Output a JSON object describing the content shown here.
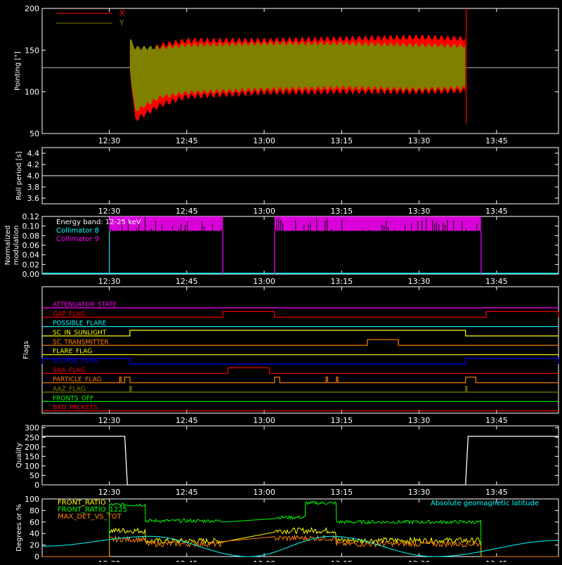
{
  "time_axis": {
    "ticks": [
      "12:30",
      "12:45",
      "13:00",
      "13:15",
      "13:30",
      "13:45"
    ]
  },
  "colors": {
    "X": "#ff0000",
    "Y": "#808000",
    "white": "#ffffff",
    "cyan": "#00ffff",
    "magenta": "#ff00ff",
    "green": "#00ff00",
    "orange": "#ff8000",
    "yellow": "#ffff00",
    "blue": "#0000ff",
    "red": "#ff0000",
    "olive": "#808000"
  },
  "chart_data": [
    {
      "id": "pointing",
      "type": "line",
      "ylabel": "Pointing [\"]",
      "ylim": [
        50,
        200
      ],
      "yticks": [
        "50",
        "100",
        "150",
        "200"
      ],
      "reference_line": 129,
      "series": [
        {
          "name": "X",
          "x": [
            "12:34",
            "12:35",
            "12:40",
            "12:45",
            "13:00",
            "13:15",
            "13:30",
            "13:39"
          ],
          "upper": [
            150,
            140,
            152,
            158,
            158,
            160,
            162,
            160
          ],
          "lower": [
            130,
            70,
            88,
            98,
            103,
            104,
            104,
            105
          ]
        },
        {
          "name": "Y",
          "x": [
            "12:34",
            "12:35",
            "12:40",
            "12:45",
            "13:00",
            "13:15",
            "13:30",
            "13:39"
          ],
          "upper": [
            160,
            150,
            150,
            153,
            155,
            155,
            153,
            152
          ],
          "lower": [
            130,
            80,
            97,
            102,
            106,
            108,
            106,
            108
          ]
        }
      ]
    },
    {
      "id": "roll",
      "type": "line",
      "ylabel": "Roll period [s]",
      "ylim": [
        3.5,
        4.5
      ],
      "yticks": [
        "3.6",
        "3.8",
        "4.0",
        "4.2",
        "4.4"
      ],
      "series": [
        {
          "name": "",
          "x": [
            "12:17",
            "13:57"
          ],
          "y": [
            4.0,
            4.0
          ]
        }
      ]
    },
    {
      "id": "modulation",
      "type": "line",
      "ylabel": "Normalized modulation",
      "ylim": [
        0,
        0.12
      ],
      "yticks": [
        "0.00",
        "0.02",
        "0.04",
        "0.06",
        "0.08",
        "0.10",
        "0.12"
      ],
      "legend": [
        "Energy band:  12-25 keV",
        "Collimator 8",
        "Collimator 9"
      ],
      "series": [
        {
          "name": "Collimator 8",
          "x": [
            "12:17",
            "13:57"
          ],
          "y": [
            0,
            0
          ]
        },
        {
          "name": "Collimator 9",
          "segments": [
            [
              "12:30",
              "12:52",
              0.09,
              0.12
            ],
            [
              "13:02",
              "13:42",
              0.09,
              0.12
            ]
          ]
        }
      ]
    },
    {
      "id": "flags",
      "type": "line",
      "ylabel": "Flags",
      "flags": [
        {
          "name": "ATTENUATOR_STATE",
          "color": "#ff00ff",
          "on": []
        },
        {
          "name": "GAP_FLAG",
          "color": "#ff0000",
          "on": [
            [
              "12:52",
              "13:02"
            ],
            [
              "13:43",
              "13:57"
            ]
          ]
        },
        {
          "name": "POSSIBLE_FLARE",
          "color": "#00ffff",
          "on": []
        },
        {
          "name": "SC_IN_SUNLIGHT",
          "color": "#ffff00",
          "on": [
            [
              "12:34",
              "13:39"
            ]
          ]
        },
        {
          "name": "SC_TRANSMITTER",
          "color": "#ff8000",
          "on": [
            [
              "13:20",
              "13:26"
            ]
          ]
        },
        {
          "name": "FLARE_FLAG",
          "color": "#ffff00",
          "on": []
        },
        {
          "name": "ECLIPSE_FLAG",
          "color": "#0000ff",
          "on": [
            [
              "12:17",
              "12:34"
            ],
            [
              "13:39",
              "13:57"
            ]
          ]
        },
        {
          "name": "SAA_FLAG",
          "color": "#ff0000",
          "on": [
            [
              "12:53",
              "13:01"
            ]
          ]
        },
        {
          "name": "PARTICLE_FLAG",
          "color": "#ff8000",
          "on": [
            [
              "12:32",
              "12:32"
            ],
            [
              "12:33",
              "12:34"
            ],
            [
              "13:02",
              "13:03"
            ],
            [
              "13:12",
              "13:12"
            ],
            [
              "13:14",
              "13:14"
            ],
            [
              "13:39",
              "13:41"
            ]
          ]
        },
        {
          "name": "AAZ_FLAG",
          "color": "#808000",
          "on": [
            [
              "12:34",
              "12:34"
            ],
            [
              "13:39",
              "13:39"
            ]
          ]
        },
        {
          "name": "FRONTS_OFF",
          "color": "#00ff00",
          "on": []
        },
        {
          "name": "BAD_PACKETS",
          "color": "#ff0000",
          "on": []
        }
      ]
    },
    {
      "id": "quality",
      "type": "line",
      "ylabel": "Quality",
      "ylim": [
        0,
        310
      ],
      "yticks": [
        "0",
        "50",
        "100",
        "150",
        "200",
        "250",
        "300"
      ],
      "series": [
        {
          "name": "",
          "x": [
            "12:17",
            "12:33",
            "12:33.5",
            "13:39",
            "13:39.5",
            "13:57"
          ],
          "y": [
            255,
            255,
            0,
            0,
            255,
            255
          ]
        }
      ]
    },
    {
      "id": "ratios",
      "type": "line",
      "ylabel": "Degrees or %",
      "ylim": [
        0,
        100
      ],
      "yticks": [
        "0",
        "20",
        "40",
        "60",
        "80",
        "100"
      ],
      "legend": [
        "FRONT_RATIO",
        "FRONT_RATIO_1225",
        "MAX_DET_VS_TOT"
      ],
      "legend_right": "Absolute geomagnetic latitude",
      "series": [
        {
          "name": "FRONT_RATIO",
          "segments": [
            [
              "12:30",
              "12:37",
              45
            ],
            [
              "12:37",
              "12:52",
              27
            ],
            [
              "13:02",
              "13:14",
              45
            ],
            [
              "13:14",
              "13:42",
              28
            ]
          ]
        },
        {
          "name": "FRONT_RATIO_1225",
          "segments": [
            [
              "12:30",
              "12:37",
              90
            ],
            [
              "12:37",
              "12:52",
              62
            ],
            [
              "13:02",
              "13:08",
              68
            ],
            [
              "13:08",
              "13:14",
              93
            ],
            [
              "13:14",
              "13:42",
              60
            ]
          ]
        },
        {
          "name": "MAX_DET_VS_TOT",
          "segments": [
            [
              "12:30",
              "12:37",
              30
            ],
            [
              "12:37",
              "12:52",
              22
            ],
            [
              "13:02",
              "13:14",
              32
            ],
            [
              "13:14",
              "13:42",
              22
            ]
          ]
        },
        {
          "name": "Absolute geomagnetic latitude",
          "x": [
            "12:17",
            "12:38",
            "12:57",
            "13:13",
            "13:33",
            "13:57"
          ],
          "y": [
            18,
            35,
            0,
            35,
            0,
            28
          ]
        }
      ]
    }
  ]
}
